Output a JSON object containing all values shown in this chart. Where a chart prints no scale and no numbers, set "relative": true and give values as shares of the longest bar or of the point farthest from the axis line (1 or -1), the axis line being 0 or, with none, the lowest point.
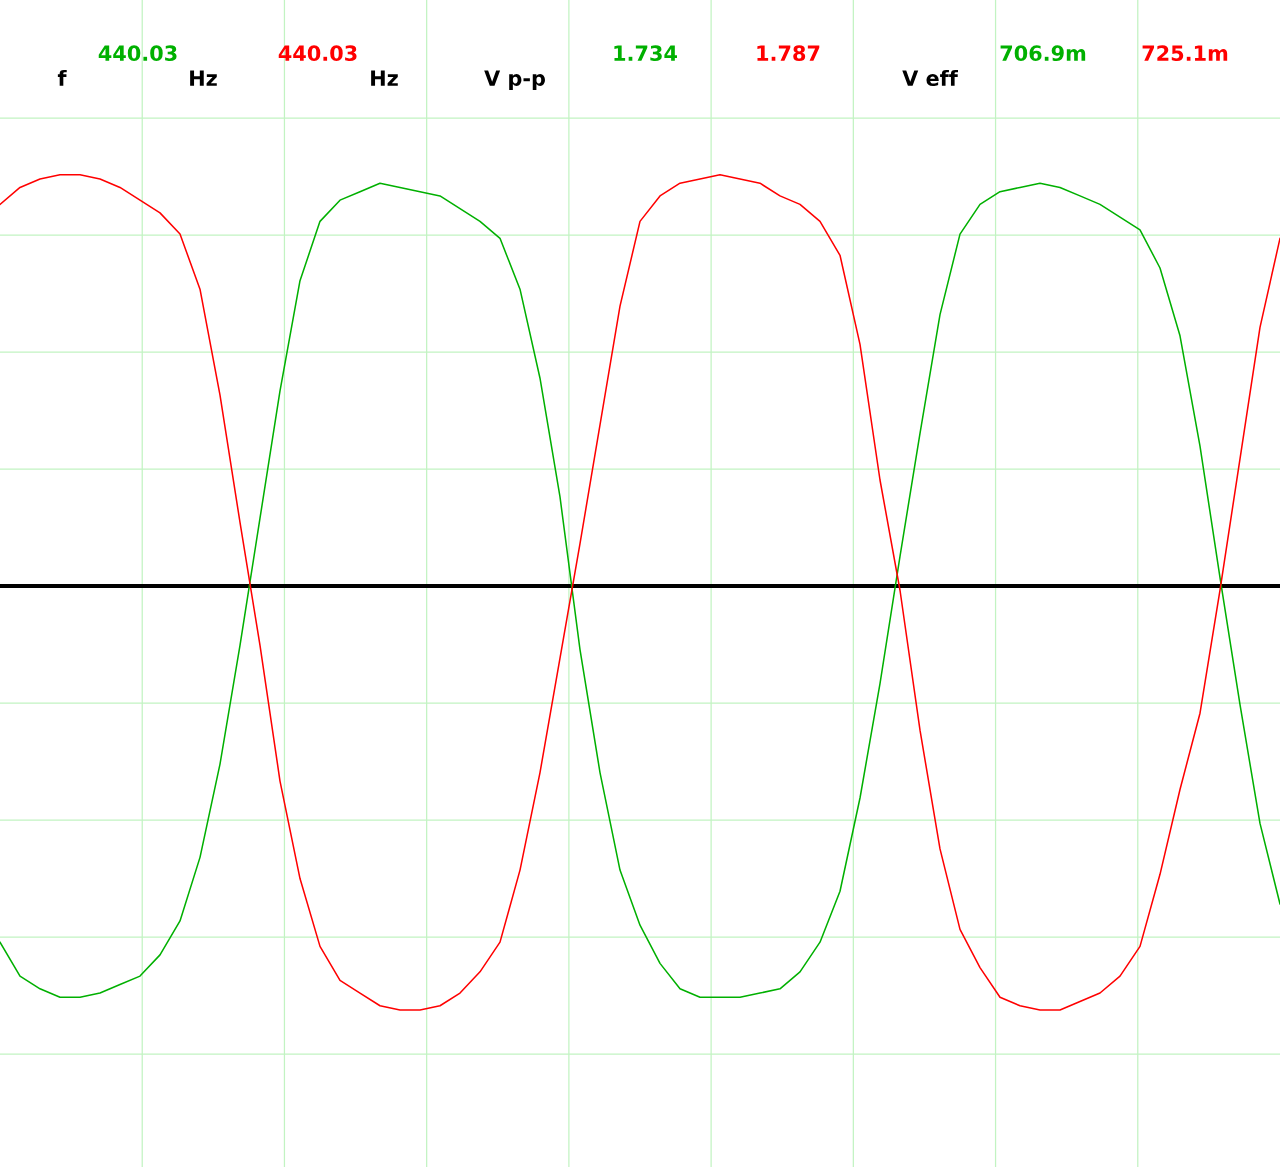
{
  "chart_data": {
    "type": "line",
    "relative": true,
    "grid": true,
    "line_style": "solid",
    "categories": [
      null,
      null,
      null,
      null,
      null,
      null,
      null,
      null,
      null,
      null,
      null,
      null,
      null,
      null,
      null,
      null,
      null,
      null,
      null,
      null,
      null,
      null,
      null,
      null,
      null,
      null,
      null,
      null,
      null,
      null,
      null,
      null,
      null,
      null,
      null,
      null,
      null,
      null,
      null,
      null,
      null,
      null,
      null,
      null,
      null,
      null,
      null,
      null,
      null,
      null,
      null,
      null,
      null,
      null,
      null,
      null,
      null,
      null,
      null,
      null,
      null,
      null,
      null,
      null,
      null
    ],
    "series": [
      {
        "color": "#00b000",
        "values": [
          -0.84,
          -0.92,
          -0.95,
          -0.97,
          -0.97,
          -0.96,
          -0.94,
          -0.92,
          -0.87,
          -0.79,
          -0.64,
          -0.42,
          -0.14,
          0.16,
          0.46,
          0.72,
          0.86,
          0.91,
          0.93,
          0.95,
          0.94,
          0.93,
          0.92,
          0.89,
          0.86,
          0.82,
          0.7,
          0.49,
          0.21,
          -0.15,
          -0.44,
          -0.67,
          -0.8,
          -0.89,
          -0.95,
          -0.97,
          -0.97,
          -0.97,
          -0.96,
          -0.95,
          -0.91,
          -0.84,
          -0.72,
          -0.5,
          -0.23,
          0.07,
          0.36,
          0.64,
          0.83,
          0.9,
          0.93,
          0.94,
          0.95,
          0.94,
          0.92,
          0.9,
          0.87,
          0.84,
          0.75,
          0.59,
          0.33,
          0.02,
          -0.28,
          -0.56,
          -0.75
        ]
      },
      {
        "color": "#ff0000",
        "values": [
          0.9,
          0.94,
          0.96,
          0.97,
          0.97,
          0.96,
          0.94,
          0.91,
          0.88,
          0.83,
          0.7,
          0.45,
          0.15,
          -0.14,
          -0.46,
          -0.69,
          -0.85,
          -0.93,
          -0.96,
          -0.99,
          -1.0,
          -1.0,
          -0.99,
          -0.96,
          -0.91,
          -0.84,
          -0.67,
          -0.44,
          -0.17,
          0.1,
          0.38,
          0.66,
          0.86,
          0.92,
          0.95,
          0.96,
          0.97,
          0.96,
          0.95,
          0.92,
          0.9,
          0.86,
          0.78,
          0.57,
          0.25,
          -0.01,
          -0.34,
          -0.62,
          -0.81,
          -0.9,
          -0.97,
          -0.99,
          -1.0,
          -1.0,
          -0.98,
          -0.96,
          -0.92,
          -0.85,
          -0.68,
          -0.48,
          -0.3,
          -0.01,
          0.3,
          0.61,
          0.82
        ]
      }
    ],
    "annotations": [
      "f",
      "440.03",
      "Hz",
      "440.03",
      "Hz",
      "V p-p",
      "1.734",
      "1.787",
      "V eff",
      "706.9m",
      "725.1m"
    ]
  }
}
